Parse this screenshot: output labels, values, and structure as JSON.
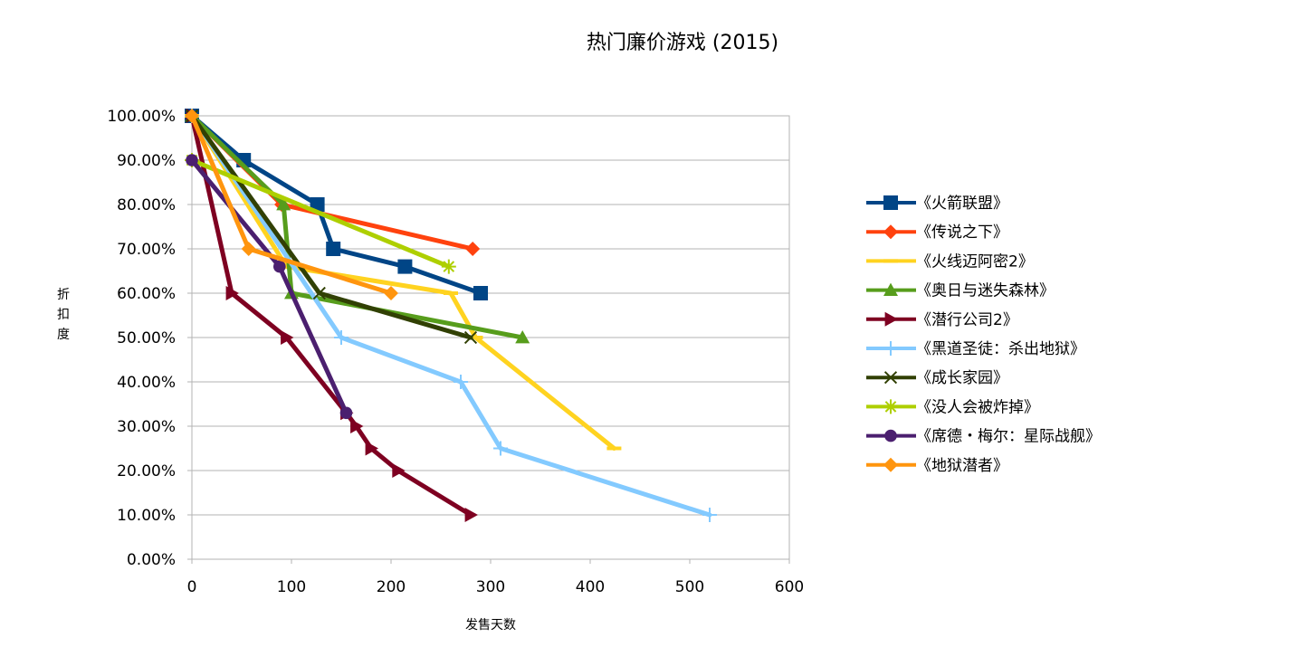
{
  "chart_data": {
    "type": "line",
    "title": "热门廉价游戏 (2015)",
    "xlabel": "发售天数",
    "ylabel": "折扣度",
    "xlim": [
      0,
      600
    ],
    "ylim": [
      0,
      1
    ],
    "x_ticks": [
      "0",
      "100",
      "200",
      "300",
      "400",
      "500",
      "600"
    ],
    "y_ticks": [
      "0.00%",
      "10.00%",
      "20.00%",
      "30.00%",
      "40.00%",
      "50.00%",
      "60.00%",
      "70.00%",
      "80.00%",
      "90.00%",
      "100.00%"
    ],
    "grid": "horizontal",
    "legend_position": "right",
    "series": [
      {
        "name": "《火箭联盟》",
        "color": "#004586",
        "marker": "square",
        "points": [
          [
            0,
            1.0
          ],
          [
            52,
            0.9
          ],
          [
            126,
            0.8
          ],
          [
            142,
            0.7
          ],
          [
            214,
            0.66
          ],
          [
            290,
            0.6
          ]
        ]
      },
      {
        "name": "《传说之下》",
        "color": "#ff420e",
        "marker": "diamond",
        "points": [
          [
            0,
            1.0
          ],
          [
            90,
            0.8
          ],
          [
            282,
            0.7
          ]
        ]
      },
      {
        "name": "《火线迈阿密2》",
        "color": "#ffd320",
        "marker": "dash",
        "points": [
          [
            0,
            1.0
          ],
          [
            95,
            0.66
          ],
          [
            260,
            0.6
          ],
          [
            285,
            0.5
          ],
          [
            424,
            0.25
          ]
        ]
      },
      {
        "name": "《奥日与迷失森林》",
        "color": "#579d1c",
        "marker": "triangle",
        "points": [
          [
            0,
            1.0
          ],
          [
            92,
            0.8
          ],
          [
            100,
            0.6
          ],
          [
            332,
            0.5
          ]
        ]
      },
      {
        "name": "《潜行公司2》",
        "color": "#7e0021",
        "marker": "triangle-right",
        "points": [
          [
            0,
            1.0
          ],
          [
            40,
            0.6
          ],
          [
            95,
            0.5
          ],
          [
            155,
            0.33
          ],
          [
            165,
            0.3
          ],
          [
            180,
            0.25
          ],
          [
            207,
            0.2
          ],
          [
            280,
            0.1
          ]
        ]
      },
      {
        "name": "《黑道圣徒：杀出地狱》",
        "color": "#83caff",
        "marker": "plus",
        "points": [
          [
            0,
            1.0
          ],
          [
            150,
            0.5
          ],
          [
            270,
            0.4
          ],
          [
            310,
            0.25
          ],
          [
            520,
            0.1
          ]
        ]
      },
      {
        "name": "《成长家园》",
        "color": "#314004",
        "marker": "x",
        "points": [
          [
            0,
            1.0
          ],
          [
            128,
            0.6
          ],
          [
            280,
            0.5
          ]
        ]
      },
      {
        "name": "《没人会被炸掉》",
        "color": "#aecf00",
        "marker": "asterisk",
        "points": [
          [
            0,
            0.9
          ],
          [
            258,
            0.66
          ]
        ]
      },
      {
        "name": "《席德・梅尔：星际战舰》",
        "color": "#4b1f6f",
        "marker": "circle",
        "points": [
          [
            0,
            0.9
          ],
          [
            88,
            0.66
          ],
          [
            155,
            0.33
          ]
        ]
      },
      {
        "name": "《地狱潜者》",
        "color": "#ff950e",
        "marker": "diamond",
        "points": [
          [
            0,
            1.0
          ],
          [
            57,
            0.7
          ],
          [
            200,
            0.6
          ]
        ]
      }
    ]
  }
}
